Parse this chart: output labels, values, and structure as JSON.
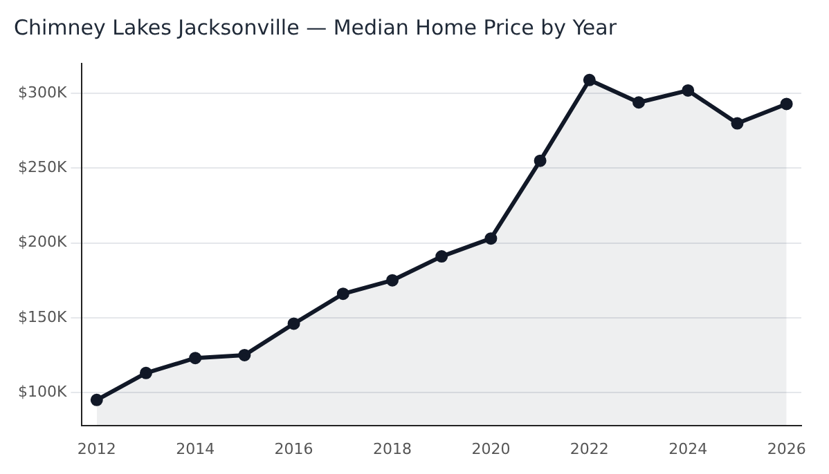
{
  "chart_data": {
    "type": "area",
    "title": "Chimney Lakes Jacksonville — Median Home Price by Year",
    "x": [
      2012,
      2013,
      2014,
      2015,
      2016,
      2017,
      2018,
      2019,
      2020,
      2021,
      2022,
      2023,
      2024,
      2025,
      2026
    ],
    "series": [
      {
        "color": "#111827",
        "values": [
          95,
          113,
          123,
          125,
          146,
          166,
          175,
          191,
          203,
          255,
          309,
          294,
          302,
          280,
          293
        ]
      }
    ],
    "xlim": [
      2011.7,
      2026.3
    ],
    "xticks": [
      2012,
      2014,
      2016,
      2018,
      2020,
      2022,
      2024,
      2026
    ],
    "ylim": [
      78,
      320
    ],
    "yticks": [
      {
        "value": 100,
        "label": "$100K"
      },
      {
        "value": 150,
        "label": "$150K"
      },
      {
        "value": 200,
        "label": "$200K"
      },
      {
        "value": 250,
        "label": "$250K"
      },
      {
        "value": 300,
        "label": "$300K"
      }
    ],
    "grid": "y",
    "marker": "circle",
    "line_style": "solid"
  }
}
